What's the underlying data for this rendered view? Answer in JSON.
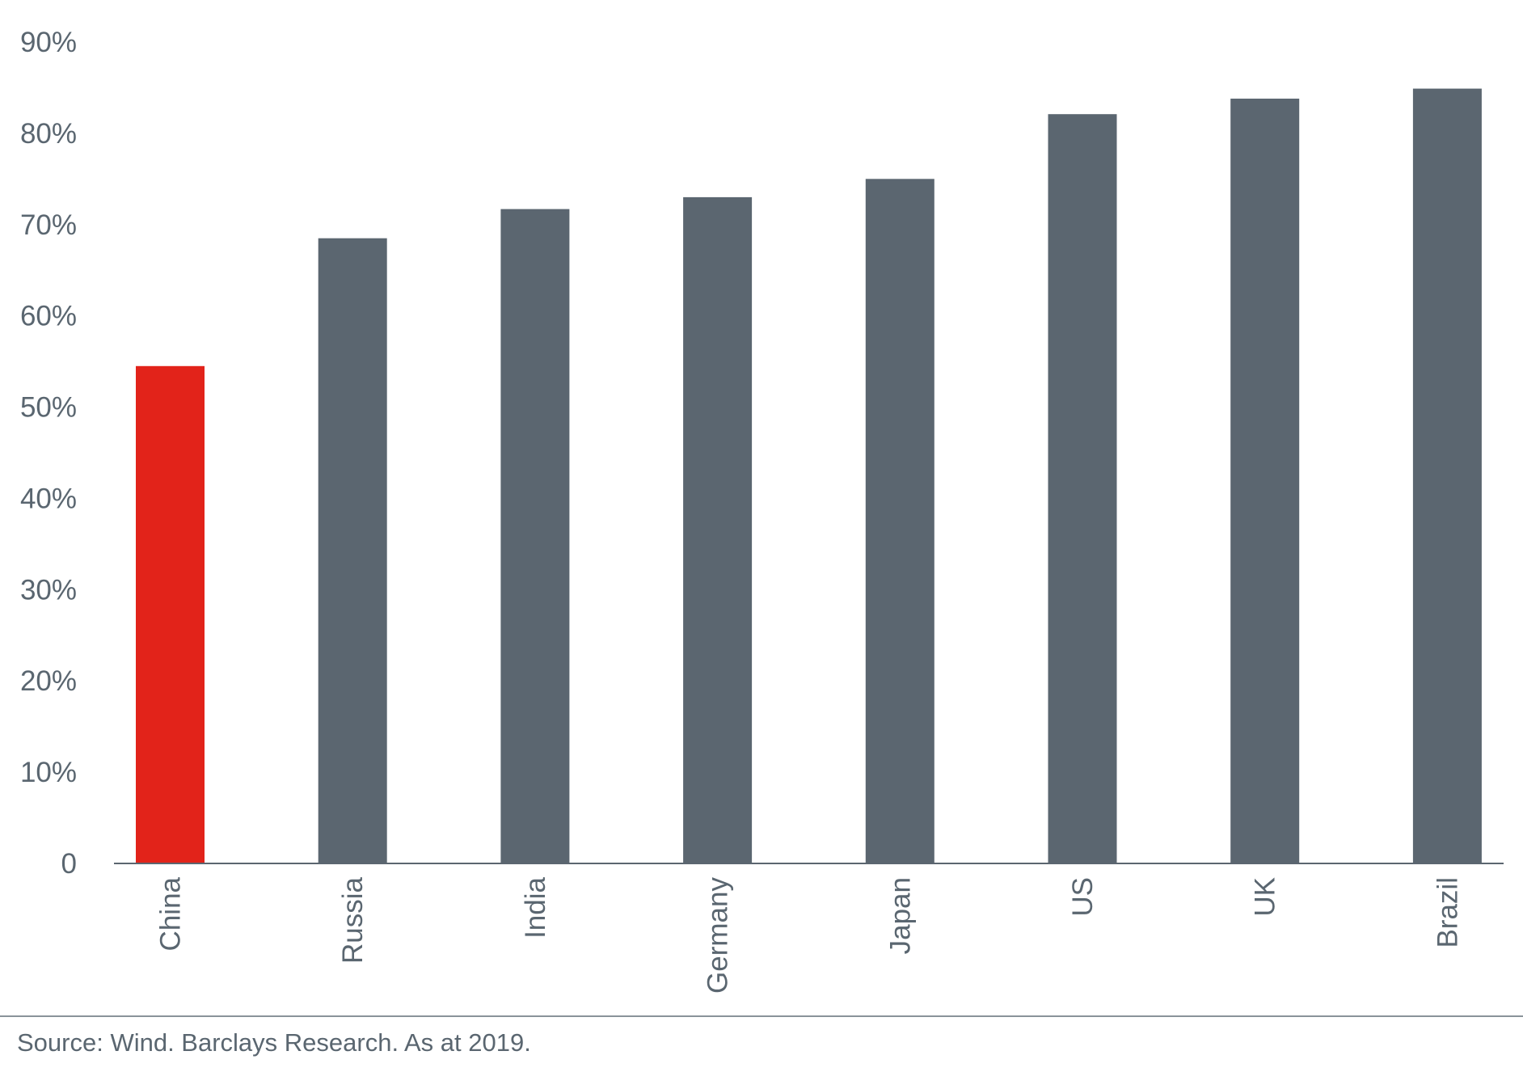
{
  "chart_data": {
    "type": "bar",
    "categories": [
      "China",
      "Russia",
      "India",
      "Germany",
      "Japan",
      "US",
      "UK",
      "Brazil"
    ],
    "series": [
      {
        "values": [
          54.5,
          68.5,
          71.7,
          73.0,
          75.0,
          82.1,
          83.8,
          84.9
        ]
      }
    ],
    "highlight_category": "China",
    "colors": {
      "highlight": "#e2231a",
      "bar": "#5b6670",
      "axis": "#5b6670",
      "text": "#5a6670"
    },
    "ylim": [
      0,
      90
    ],
    "yticks": [
      {
        "value": 0,
        "label": "0"
      },
      {
        "value": 10,
        "label": "10%"
      },
      {
        "value": 20,
        "label": "20%"
      },
      {
        "value": 30,
        "label": "30%"
      },
      {
        "value": 40,
        "label": "40%"
      },
      {
        "value": 50,
        "label": "50%"
      },
      {
        "value": 60,
        "label": "60%"
      },
      {
        "value": 70,
        "label": "70%"
      },
      {
        "value": 80,
        "label": "80%"
      },
      {
        "value": 90,
        "label": "90%"
      }
    ],
    "grid": false,
    "legend": "none",
    "title": "",
    "xlabel": "",
    "ylabel": ""
  },
  "source": "Source: Wind. Barclays Research. As at 2019."
}
